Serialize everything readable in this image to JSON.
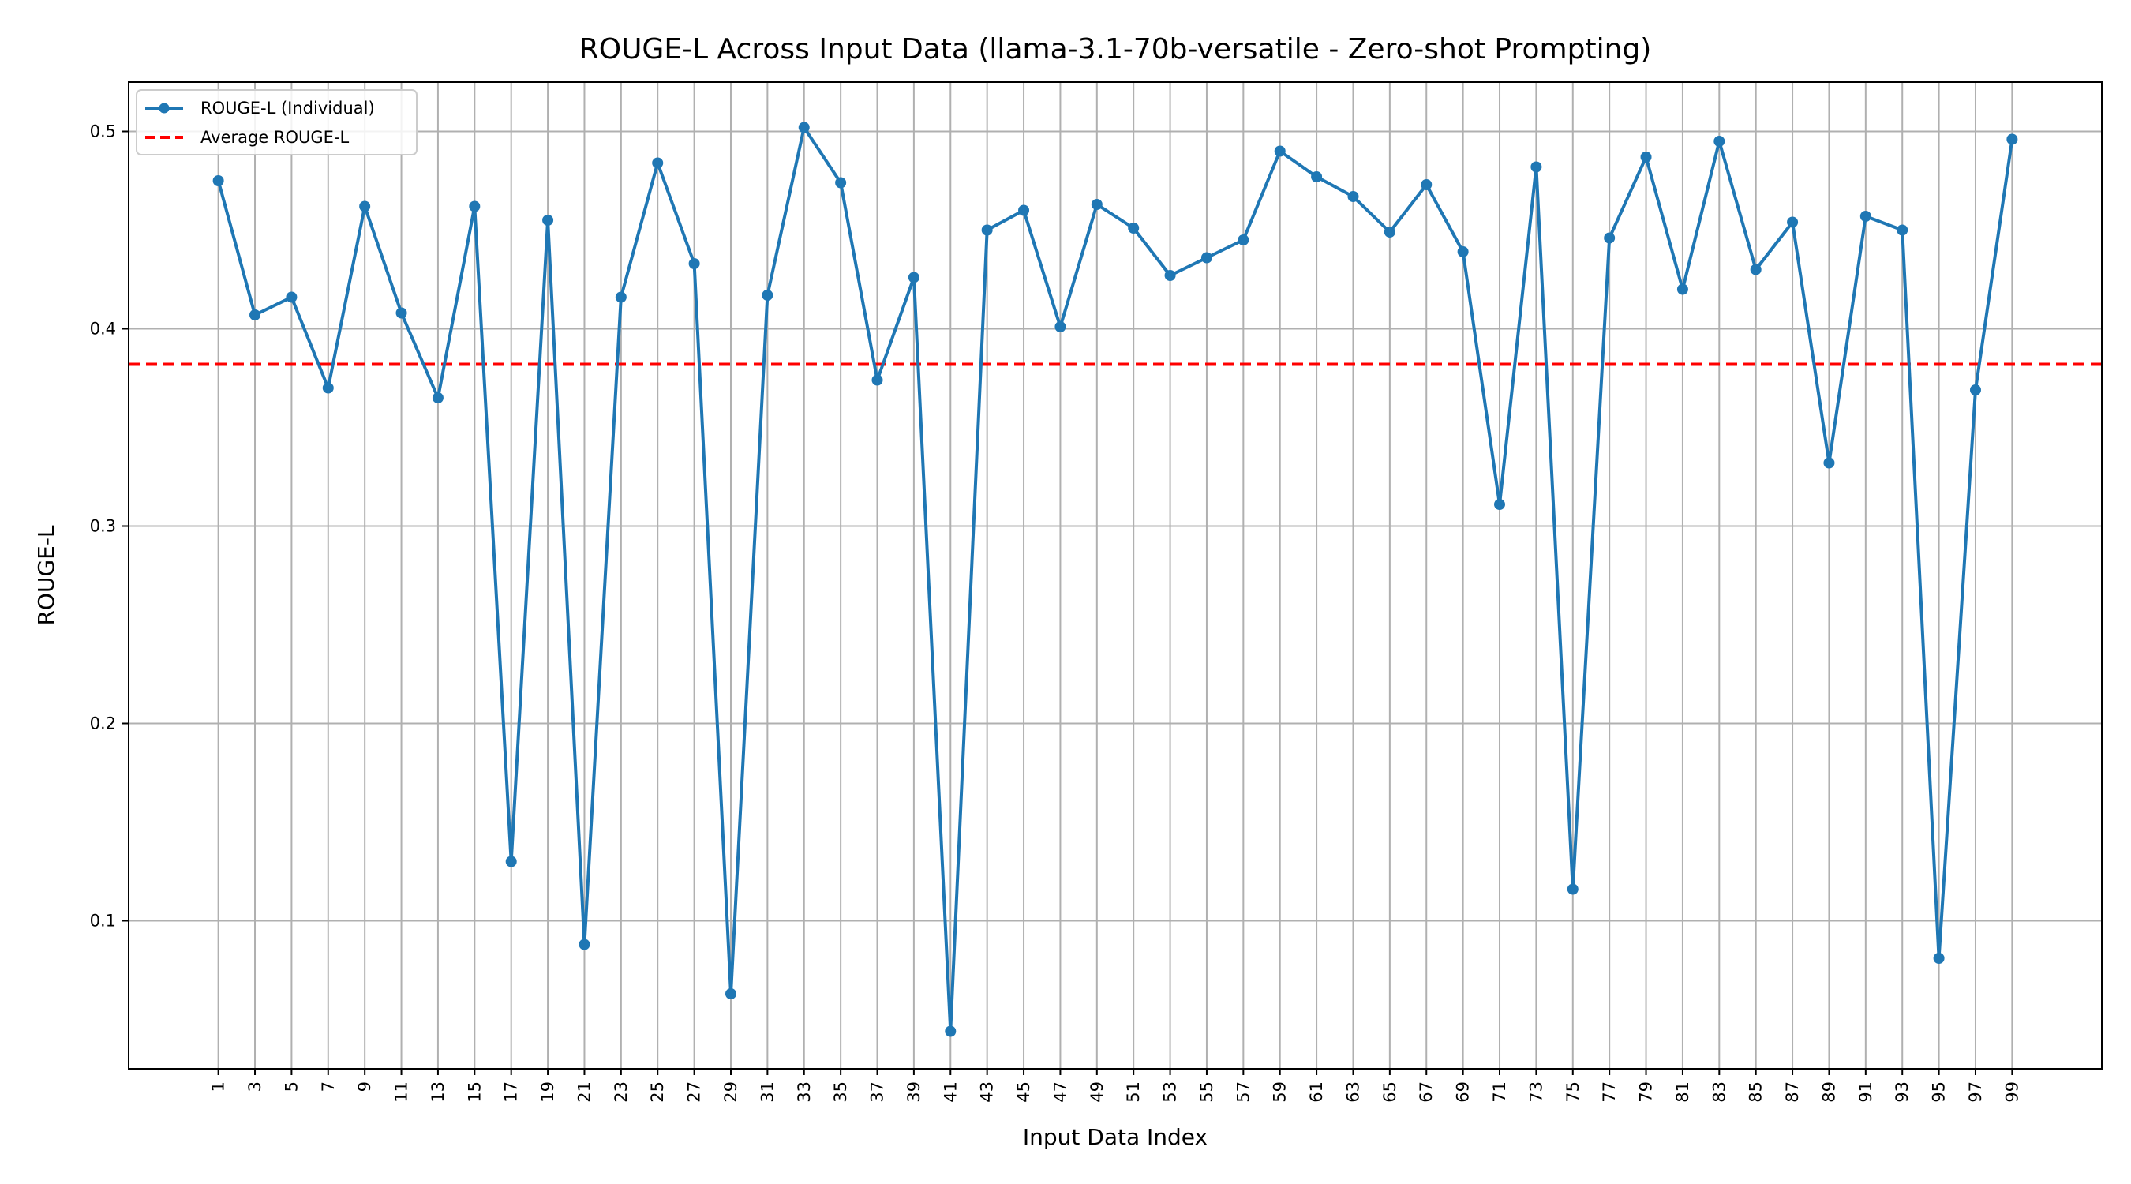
{
  "chart_data": {
    "type": "line",
    "title": "ROUGE-L Across Input Data (llama-3.1-70b-versatile - Zero-shot Prompting)",
    "xlabel": "Input Data Index",
    "ylabel": "ROUGE-L",
    "x": [
      1,
      3,
      5,
      7,
      9,
      11,
      13,
      15,
      17,
      19,
      21,
      23,
      25,
      27,
      29,
      31,
      33,
      35,
      37,
      39,
      41,
      43,
      45,
      47,
      49,
      51,
      53,
      55,
      57,
      59,
      61,
      63,
      65,
      67,
      69,
      71,
      73,
      75,
      77,
      79,
      81,
      83,
      85,
      87,
      89,
      91,
      93,
      95,
      97,
      99
    ],
    "xlim": [
      -3.9,
      103.9
    ],
    "ylim": [
      0.025,
      0.525
    ],
    "yticks": [
      "0.1",
      "0.2",
      "0.3",
      "0.4",
      "0.5"
    ],
    "grid": true,
    "legend_position": "top-left",
    "series": [
      {
        "name": "ROUGE-L (Individual)",
        "color": "#1f77b4",
        "marker": "circle",
        "values": [
          0.475,
          0.407,
          0.416,
          0.37,
          0.462,
          0.408,
          0.365,
          0.462,
          0.13,
          0.455,
          0.088,
          0.416,
          0.484,
          0.433,
          0.063,
          0.417,
          0.502,
          0.474,
          0.374,
          0.426,
          0.044,
          0.45,
          0.46,
          0.401,
          0.463,
          0.451,
          0.427,
          0.436,
          0.445,
          0.49,
          0.477,
          0.467,
          0.449,
          0.473,
          0.439,
          0.311,
          0.482,
          0.116,
          0.446,
          0.487,
          0.42,
          0.495,
          0.43,
          0.454,
          0.332,
          0.457,
          0.45,
          0.081,
          0.369,
          0.496
        ]
      },
      {
        "name": "Average ROUGE-L",
        "color": "#ff0000",
        "style": "dashed",
        "value": 0.382
      }
    ]
  }
}
